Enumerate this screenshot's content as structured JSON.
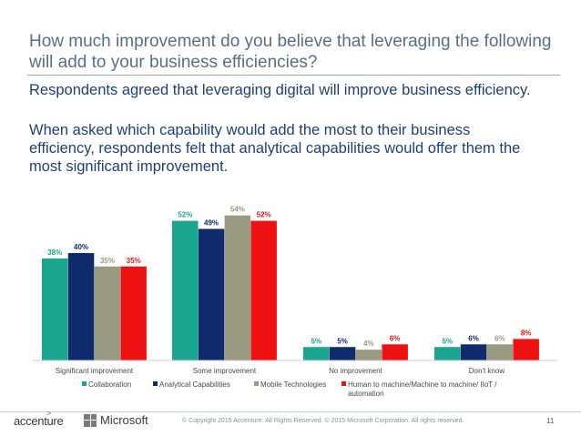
{
  "slide": {
    "title": "How much improvement do you believe that leveraging the following will add to your business efficiencies?",
    "paragraphs": [
      "Respondents agreed that leveraging digital will improve business efficiency.",
      "When asked which capability would add the most to their business efficiency, respondents felt that analytical capabilities would offer them the most significant improvement."
    ]
  },
  "chart_data": {
    "type": "bar",
    "categories": [
      "Significant improvement",
      "Some improvement",
      "No improvement",
      "Don't know"
    ],
    "series": [
      {
        "name": "Collaboration",
        "color": "#1aa68e",
        "values": [
          38,
          52,
          5,
          5
        ],
        "labels": [
          "38%",
          "52%",
          "5%",
          "5%"
        ]
      },
      {
        "name": "Analytical Capabilities",
        "color": "#0f2b6b",
        "values": [
          40,
          49,
          5,
          6
        ],
        "labels": [
          "40%",
          "49%",
          "5%",
          "6%"
        ]
      },
      {
        "name": "Mobile Technologies",
        "color": "#999a80",
        "values": [
          35,
          54,
          4,
          6
        ],
        "labels": [
          "35%",
          "54%",
          "4%",
          "6%"
        ]
      },
      {
        "name": "Human to machine/Machine to machine/ IIoT / automation",
        "color": "#ee1111",
        "values": [
          35,
          52,
          6,
          8
        ],
        "labels": [
          "35%",
          "52%",
          "6%",
          "8%"
        ]
      }
    ],
    "label_colors": [
      "#1aa68e",
      "#0f2b6b",
      "#999a80",
      "#ee1111"
    ],
    "ylim": [
      0,
      60
    ],
    "grid": false,
    "legend": "bottom"
  },
  "footer": {
    "brand_accenture": "accenture",
    "brand_microsoft": "Microsoft",
    "copyright": "© Copyright 2015 Accenture. All Rights Reserved. © 2015 Microsoft Corporation. All rights reserved.",
    "page_number": "11"
  }
}
